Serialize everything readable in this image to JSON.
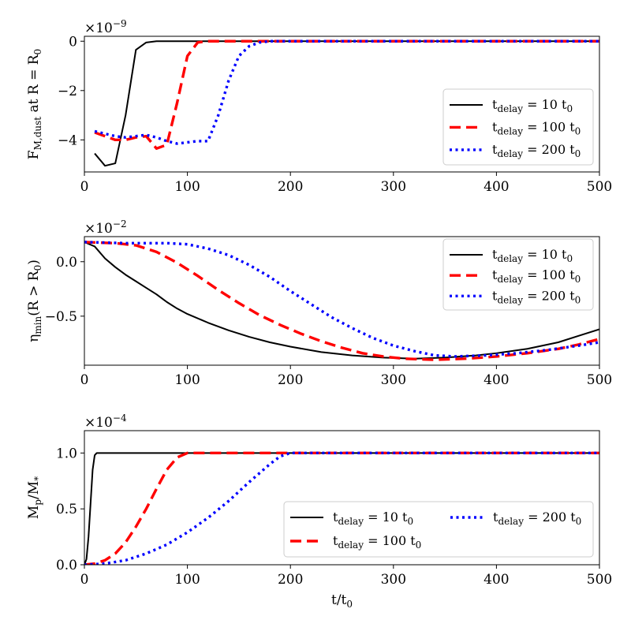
{
  "chart_data": [
    {
      "type": "line",
      "ylabel": "F_{M,dust} at R = R_0",
      "ylabel_parts": [
        "F",
        "M,dust",
        " at R = R",
        "0"
      ],
      "scale_label": [
        "×10",
        "−9"
      ],
      "xlim": [
        0,
        500
      ],
      "ylim": [
        -5.3,
        0.2
      ],
      "xticks": [
        0,
        100,
        200,
        300,
        400,
        500
      ],
      "yticks": [
        {
          "value": 0,
          "label": "0"
        },
        {
          "value": -2,
          "label": "−2"
        },
        {
          "value": -4,
          "label": "−4"
        }
      ],
      "legend_position": "lower-right",
      "legend_columns": 1,
      "series": [
        {
          "name": "t_delay = 10 t_0",
          "label_parts": [
            "t",
            "delay",
            " = 10 t",
            "0"
          ],
          "color": "#000000",
          "style": "solid",
          "points": [
            [
              10,
              -4.55
            ],
            [
              20,
              -5.05
            ],
            [
              30,
              -4.95
            ],
            [
              40,
              -3.0
            ],
            [
              50,
              -0.35
            ],
            [
              60,
              -0.05
            ],
            [
              70,
              0
            ],
            [
              80,
              0
            ],
            [
              100,
              0
            ],
            [
              200,
              0
            ],
            [
              300,
              0
            ],
            [
              400,
              0
            ],
            [
              500,
              0
            ]
          ]
        },
        {
          "name": "t_delay = 100 t_0",
          "label_parts": [
            "t",
            "delay",
            " = 100 t",
            "0"
          ],
          "color": "#ff0000",
          "style": "dashed",
          "points": [
            [
              10,
              -3.7
            ],
            [
              20,
              -3.85
            ],
            [
              30,
              -4.0
            ],
            [
              40,
              -4.0
            ],
            [
              50,
              -3.9
            ],
            [
              60,
              -3.85
            ],
            [
              70,
              -4.35
            ],
            [
              80,
              -4.2
            ],
            [
              90,
              -2.5
            ],
            [
              100,
              -0.6
            ],
            [
              110,
              -0.05
            ],
            [
              120,
              0
            ],
            [
              200,
              0
            ],
            [
              300,
              0
            ],
            [
              400,
              0
            ],
            [
              500,
              0
            ]
          ]
        },
        {
          "name": "t_delay = 200 t_0",
          "label_parts": [
            "t",
            "delay",
            " = 200 t",
            "0"
          ],
          "color": "#0000ff",
          "style": "dotted",
          "points": [
            [
              10,
              -3.65
            ],
            [
              20,
              -3.75
            ],
            [
              30,
              -3.85
            ],
            [
              40,
              -3.9
            ],
            [
              50,
              -3.85
            ],
            [
              60,
              -3.8
            ],
            [
              70,
              -3.9
            ],
            [
              80,
              -4.05
            ],
            [
              90,
              -4.15
            ],
            [
              100,
              -4.1
            ],
            [
              110,
              -4.05
            ],
            [
              120,
              -4.05
            ],
            [
              130,
              -3.0
            ],
            [
              140,
              -1.6
            ],
            [
              150,
              -0.6
            ],
            [
              160,
              -0.2
            ],
            [
              170,
              -0.05
            ],
            [
              180,
              0
            ],
            [
              200,
              0
            ],
            [
              300,
              0
            ],
            [
              400,
              0
            ],
            [
              500,
              0
            ]
          ]
        }
      ]
    },
    {
      "type": "line",
      "ylabel": "η_min(R > R_0)",
      "ylabel_parts": [
        "η",
        "min",
        "(R > R",
        "0",
        ")"
      ],
      "scale_label": [
        "×10",
        "−2"
      ],
      "xlim": [
        0,
        500
      ],
      "ylim": [
        -0.95,
        0.23
      ],
      "xticks": [
        0,
        100,
        200,
        300,
        400,
        500
      ],
      "yticks": [
        {
          "value": 0,
          "label": "0.0"
        },
        {
          "value": -0.5,
          "label": "−0.5"
        }
      ],
      "legend_position": "top-right",
      "legend_columns": 1,
      "series": [
        {
          "name": "t_delay = 10 t_0",
          "label_parts": [
            "t",
            "delay",
            " = 10 t",
            "0"
          ],
          "color": "#000000",
          "style": "solid",
          "points": [
            [
              0,
              0.18
            ],
            [
              10,
              0.14
            ],
            [
              20,
              0.03
            ],
            [
              30,
              -0.05
            ],
            [
              40,
              -0.12
            ],
            [
              50,
              -0.18
            ],
            [
              60,
              -0.24
            ],
            [
              70,
              -0.3
            ],
            [
              80,
              -0.37
            ],
            [
              90,
              -0.43
            ],
            [
              100,
              -0.48
            ],
            [
              120,
              -0.56
            ],
            [
              140,
              -0.63
            ],
            [
              160,
              -0.69
            ],
            [
              180,
              -0.74
            ],
            [
              200,
              -0.78
            ],
            [
              230,
              -0.83
            ],
            [
              260,
              -0.86
            ],
            [
              290,
              -0.88
            ],
            [
              320,
              -0.89
            ],
            [
              350,
              -0.88
            ],
            [
              380,
              -0.86
            ],
            [
              400,
              -0.84
            ],
            [
              430,
              -0.8
            ],
            [
              460,
              -0.74
            ],
            [
              480,
              -0.68
            ],
            [
              500,
              -0.62
            ]
          ]
        },
        {
          "name": "t_delay = 100 t_0",
          "label_parts": [
            "t",
            "delay",
            " = 100 t",
            "0"
          ],
          "color": "#ff0000",
          "style": "dashed",
          "points": [
            [
              0,
              0.18
            ],
            [
              30,
              0.17
            ],
            [
              50,
              0.15
            ],
            [
              70,
              0.09
            ],
            [
              90,
              -0.01
            ],
            [
              110,
              -0.13
            ],
            [
              130,
              -0.26
            ],
            [
              150,
              -0.38
            ],
            [
              170,
              -0.49
            ],
            [
              190,
              -0.58
            ],
            [
              210,
              -0.66
            ],
            [
              230,
              -0.73
            ],
            [
              250,
              -0.79
            ],
            [
              270,
              -0.84
            ],
            [
              290,
              -0.87
            ],
            [
              310,
              -0.89
            ],
            [
              340,
              -0.9
            ],
            [
              370,
              -0.89
            ],
            [
              400,
              -0.87
            ],
            [
              430,
              -0.84
            ],
            [
              460,
              -0.8
            ],
            [
              480,
              -0.76
            ],
            [
              500,
              -0.71
            ]
          ]
        },
        {
          "name": "t_delay = 200 t_0",
          "label_parts": [
            "t",
            "delay",
            " = 200 t",
            "0"
          ],
          "color": "#0000ff",
          "style": "dotted",
          "points": [
            [
              0,
              0.18
            ],
            [
              40,
              0.17
            ],
            [
              80,
              0.17
            ],
            [
              100,
              0.16
            ],
            [
              120,
              0.12
            ],
            [
              140,
              0.06
            ],
            [
              160,
              -0.03
            ],
            [
              180,
              -0.14
            ],
            [
              200,
              -0.27
            ],
            [
              220,
              -0.39
            ],
            [
              240,
              -0.51
            ],
            [
              260,
              -0.61
            ],
            [
              280,
              -0.7
            ],
            [
              300,
              -0.77
            ],
            [
              320,
              -0.82
            ],
            [
              340,
              -0.86
            ],
            [
              360,
              -0.87
            ],
            [
              390,
              -0.86
            ],
            [
              420,
              -0.84
            ],
            [
              450,
              -0.81
            ],
            [
              480,
              -0.77
            ],
            [
              500,
              -0.74
            ]
          ]
        }
      ]
    },
    {
      "type": "line",
      "ylabel": "M_p/M_*",
      "ylabel_parts": [
        "M",
        "p",
        "/M",
        "*"
      ],
      "xlabel": "t/t_0",
      "xlabel_parts": [
        "t/t",
        "0"
      ],
      "scale_label": [
        "×10",
        "−4"
      ],
      "xlim": [
        0,
        500
      ],
      "ylim": [
        0,
        1.2
      ],
      "xticks": [
        0,
        100,
        200,
        300,
        400,
        500
      ],
      "yticks": [
        {
          "value": 0,
          "label": "0.0"
        },
        {
          "value": 0.5,
          "label": "0.5"
        },
        {
          "value": 1.0,
          "label": "1.0"
        }
      ],
      "legend_position": "lower-right",
      "legend_columns": 2,
      "series": [
        {
          "name": "t_delay = 10 t_0",
          "label_parts": [
            "t",
            "delay",
            " = 10 t",
            "0"
          ],
          "color": "#000000",
          "style": "solid",
          "points": [
            [
              0,
              0
            ],
            [
              2,
              0.05
            ],
            [
              4,
              0.25
            ],
            [
              6,
              0.55
            ],
            [
              8,
              0.85
            ],
            [
              10,
              0.98
            ],
            [
              12,
              1.0
            ],
            [
              500,
              1.0
            ]
          ]
        },
        {
          "name": "t_delay = 100 t_0",
          "label_parts": [
            "t",
            "delay",
            " = 100 t",
            "0"
          ],
          "color": "#ff0000",
          "style": "dashed",
          "points": [
            [
              0,
              0
            ],
            [
              10,
              0.01
            ],
            [
              20,
              0.04
            ],
            [
              30,
              0.1
            ],
            [
              40,
              0.2
            ],
            [
              50,
              0.34
            ],
            [
              60,
              0.5
            ],
            [
              70,
              0.68
            ],
            [
              80,
              0.85
            ],
            [
              90,
              0.96
            ],
            [
              100,
              1.0
            ],
            [
              500,
              1.0
            ]
          ]
        },
        {
          "name": "t_delay = 200 t_0",
          "label_parts": [
            "t",
            "delay",
            " = 200 t",
            "0"
          ],
          "color": "#0000ff",
          "style": "dotted",
          "points": [
            [
              0,
              0
            ],
            [
              20,
              0.01
            ],
            [
              40,
              0.04
            ],
            [
              60,
              0.1
            ],
            [
              80,
              0.18
            ],
            [
              100,
              0.29
            ],
            [
              120,
              0.42
            ],
            [
              140,
              0.57
            ],
            [
              160,
              0.74
            ],
            [
              180,
              0.9
            ],
            [
              190,
              0.97
            ],
            [
              200,
              1.0
            ],
            [
              500,
              1.0
            ]
          ]
        }
      ]
    }
  ]
}
